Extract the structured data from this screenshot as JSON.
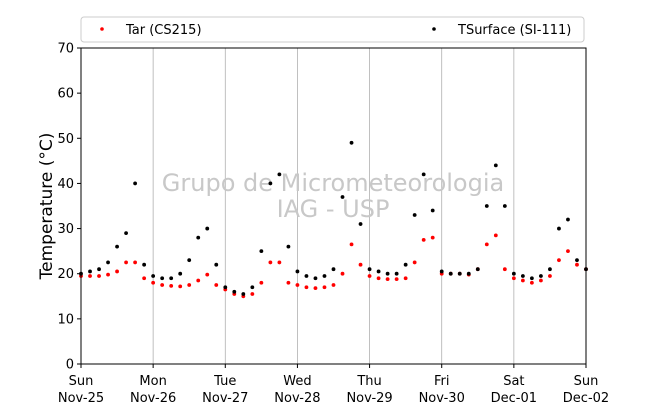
{
  "chart_data": {
    "type": "scatter",
    "ylabel": "Temperature (°C)",
    "ylim": [
      0,
      70
    ],
    "yticks": [
      0,
      10,
      20,
      30,
      40,
      50,
      60,
      70
    ],
    "xlim": [
      "2018-11-25 00:00",
      "2018-12-02 00:00"
    ],
    "x_tick_labels": [
      {
        "day": "Sun",
        "date": "Nov-25"
      },
      {
        "day": "Mon",
        "date": "Nov-26"
      },
      {
        "day": "Tue",
        "date": "Nov-27"
      },
      {
        "day": "Wed",
        "date": "Nov-28"
      },
      {
        "day": "Thu",
        "date": "Nov-29"
      },
      {
        "day": "Fri",
        "date": "Nov-30"
      },
      {
        "day": "Sat",
        "date": "Dec-01"
      },
      {
        "day": "Sun",
        "date": "Dec-02"
      }
    ],
    "grid": "vertical",
    "legend_placement": "top",
    "watermark": [
      "Grupo de Micrometeorologia",
      "IAG - USP"
    ],
    "series": [
      {
        "name": "Tar (CS215)",
        "color": "#ff0000",
        "x": [
          "2018-11-25 00:00",
          "2018-11-25 03:00",
          "2018-11-25 06:00",
          "2018-11-25 09:00",
          "2018-11-25 12:00",
          "2018-11-25 15:00",
          "2018-11-25 18:00",
          "2018-11-25 21:00",
          "2018-11-26 00:00",
          "2018-11-26 03:00",
          "2018-11-26 06:00",
          "2018-11-26 09:00",
          "2018-11-26 12:00",
          "2018-11-26 15:00",
          "2018-11-26 18:00",
          "2018-11-26 21:00",
          "2018-11-27 00:00",
          "2018-11-27 03:00",
          "2018-11-27 06:00",
          "2018-11-27 09:00",
          "2018-11-27 12:00",
          "2018-11-27 15:00",
          "2018-11-27 18:00",
          "2018-11-27 21:00",
          "2018-11-28 00:00",
          "2018-11-28 03:00",
          "2018-11-28 06:00",
          "2018-11-28 09:00",
          "2018-11-28 12:00",
          "2018-11-28 15:00",
          "2018-11-28 18:00",
          "2018-11-28 21:00",
          "2018-11-29 00:00",
          "2018-11-29 03:00",
          "2018-11-29 06:00",
          "2018-11-29 09:00",
          "2018-11-29 12:00",
          "2018-11-29 15:00",
          "2018-11-29 18:00",
          "2018-11-29 21:00",
          "2018-11-30 00:00",
          "2018-11-30 03:00",
          "2018-11-30 06:00",
          "2018-11-30 09:00",
          "2018-11-30 12:00",
          "2018-11-30 15:00",
          "2018-11-30 18:00",
          "2018-11-30 21:00",
          "2018-12-01 00:00",
          "2018-12-01 03:00",
          "2018-12-01 06:00",
          "2018-12-01 09:00",
          "2018-12-01 12:00",
          "2018-12-01 15:00",
          "2018-12-01 18:00",
          "2018-12-01 21:00",
          "2018-12-02 00:00"
        ],
        "y": [
          19.5,
          19.5,
          19.5,
          19.8,
          20.5,
          22.5,
          22.5,
          19.0,
          18.0,
          17.5,
          17.3,
          17.2,
          17.5,
          18.5,
          19.8,
          17.5,
          16.5,
          15.5,
          15.0,
          15.5,
          18.0,
          22.5,
          22.5,
          18.0,
          17.5,
          17.0,
          16.8,
          17.0,
          17.5,
          20.0,
          26.5,
          22.0,
          19.5,
          19.0,
          18.8,
          18.8,
          19.0,
          22.5,
          27.5,
          28.0,
          20.0,
          20.0,
          20.0,
          19.8,
          21.0,
          26.5,
          28.5,
          21.0,
          19.0,
          18.5,
          18.0,
          18.5,
          19.5,
          23.0,
          25.0,
          22.0,
          21.0
        ]
      },
      {
        "name": "TSurface (SI-111)",
        "color": "#000000",
        "x": [
          "2018-11-25 00:00",
          "2018-11-25 03:00",
          "2018-11-25 06:00",
          "2018-11-25 09:00",
          "2018-11-25 12:00",
          "2018-11-25 15:00",
          "2018-11-25 18:00",
          "2018-11-25 21:00",
          "2018-11-26 00:00",
          "2018-11-26 03:00",
          "2018-11-26 06:00",
          "2018-11-26 09:00",
          "2018-11-26 12:00",
          "2018-11-26 15:00",
          "2018-11-26 18:00",
          "2018-11-26 21:00",
          "2018-11-27 00:00",
          "2018-11-27 03:00",
          "2018-11-27 06:00",
          "2018-11-27 09:00",
          "2018-11-27 12:00",
          "2018-11-27 15:00",
          "2018-11-27 18:00",
          "2018-11-27 21:00",
          "2018-11-28 00:00",
          "2018-11-28 03:00",
          "2018-11-28 06:00",
          "2018-11-28 09:00",
          "2018-11-28 12:00",
          "2018-11-28 15:00",
          "2018-11-28 18:00",
          "2018-11-28 21:00",
          "2018-11-29 00:00",
          "2018-11-29 03:00",
          "2018-11-29 06:00",
          "2018-11-29 09:00",
          "2018-11-29 12:00",
          "2018-11-29 15:00",
          "2018-11-29 18:00",
          "2018-11-29 21:00",
          "2018-11-30 00:00",
          "2018-11-30 03:00",
          "2018-11-30 06:00",
          "2018-11-30 09:00",
          "2018-11-30 12:00",
          "2018-11-30 15:00",
          "2018-11-30 18:00",
          "2018-11-30 21:00",
          "2018-12-01 00:00",
          "2018-12-01 03:00",
          "2018-12-01 06:00",
          "2018-12-01 09:00",
          "2018-12-01 12:00",
          "2018-12-01 15:00",
          "2018-12-01 18:00",
          "2018-12-01 21:00",
          "2018-12-02 00:00"
        ],
        "y": [
          20.0,
          20.5,
          21.0,
          22.5,
          26.0,
          29.0,
          40.0,
          22.0,
          19.5,
          19.0,
          19.0,
          20.0,
          23.0,
          28.0,
          30.0,
          22.0,
          17.0,
          16.0,
          15.5,
          17.0,
          25.0,
          40.0,
          42.0,
          26.0,
          20.5,
          19.5,
          19.0,
          19.5,
          21.0,
          37.0,
          49.0,
          31.0,
          21.0,
          20.5,
          20.0,
          20.0,
          22.0,
          33.0,
          42.0,
          34.0,
          20.5,
          20.0,
          20.0,
          20.0,
          21.0,
          35.0,
          44.0,
          35.0,
          20.0,
          19.5,
          19.0,
          19.5,
          21.0,
          30.0,
          32.0,
          23.0,
          21.0
        ]
      }
    ]
  }
}
